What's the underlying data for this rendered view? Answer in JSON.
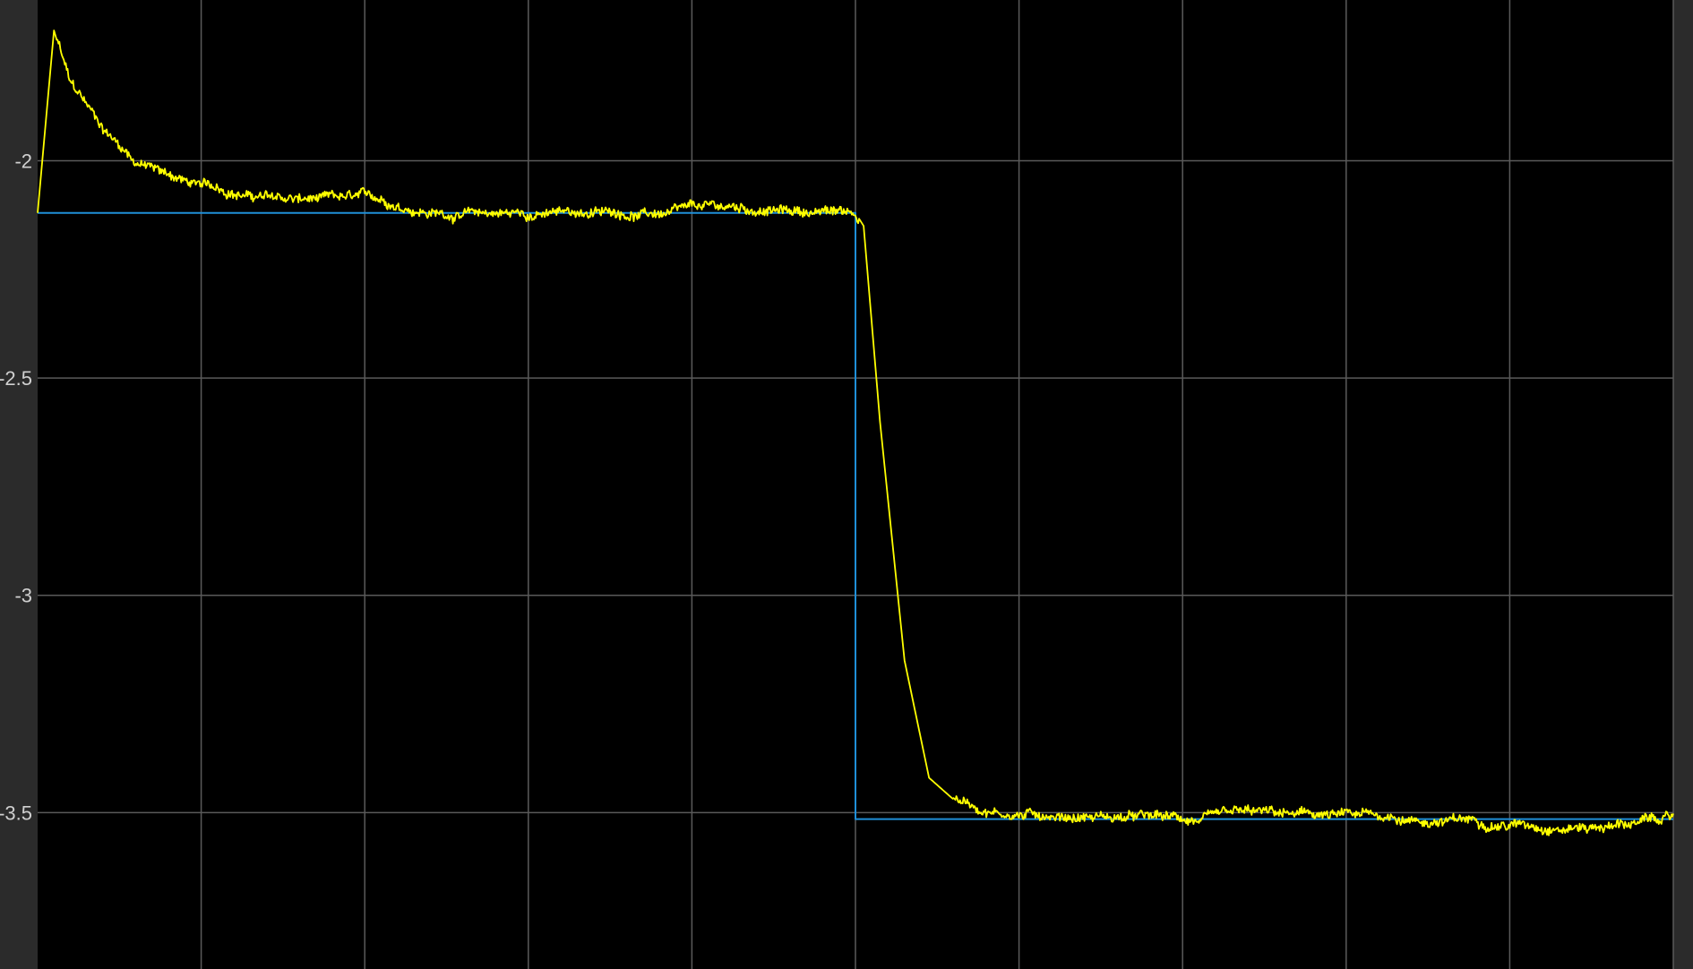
{
  "chart_data": {
    "type": "line",
    "title": "",
    "xlabel": "",
    "ylabel": "",
    "grid": true,
    "legend": "none",
    "xlim": [
      0,
      10
    ],
    "ylim": [
      -3.86,
      -1.63
    ],
    "x_ticks": [
      0,
      1,
      2,
      3,
      4,
      5,
      6,
      7,
      8,
      9,
      10
    ],
    "y_ticks": [
      -2,
      -2.5,
      -3,
      -3.5
    ],
    "y_tick_labels": [
      "-2",
      "-2.5",
      "-3",
      "-3.5"
    ],
    "colors": {
      "background": "#000000",
      "frame": "#2b2b2b",
      "grid": "#5a5a5a",
      "tick_text": "#d0d0d0",
      "reference": "#1f8fd8",
      "measured": "#ffff00"
    },
    "series": [
      {
        "values": {
          "x": [
            0,
            5,
            5,
            10
          ],
          "y": [
            -2.12,
            -2.12,
            -3.515,
            -3.515
          ]
        }
      },
      {
        "values": {
          "x": [
            0,
            0.1,
            0.2,
            0.4,
            0.6,
            0.8,
            1.0,
            1.5,
            2.0,
            2.5,
            3.0,
            3.5,
            4.0,
            4.5,
            5.0,
            5.05,
            5.15,
            5.3,
            5.45,
            5.6,
            5.75,
            6.0,
            6.5,
            7.0,
            7.5,
            8.0,
            8.5,
            9.0,
            9.5,
            10.0
          ],
          "y": [
            -2.12,
            -1.7,
            -1.83,
            -1.93,
            -2.0,
            -2.03,
            -2.06,
            -2.09,
            -2.1,
            -2.12,
            -2.12,
            -2.12,
            -2.12,
            -2.12,
            -2.12,
            -2.15,
            -2.6,
            -3.15,
            -3.42,
            -3.47,
            -3.49,
            -3.5,
            -3.5,
            -3.52,
            -3.52,
            -3.52,
            -3.52,
            -3.52,
            -3.52,
            -3.51
          ]
        }
      }
    ]
  }
}
